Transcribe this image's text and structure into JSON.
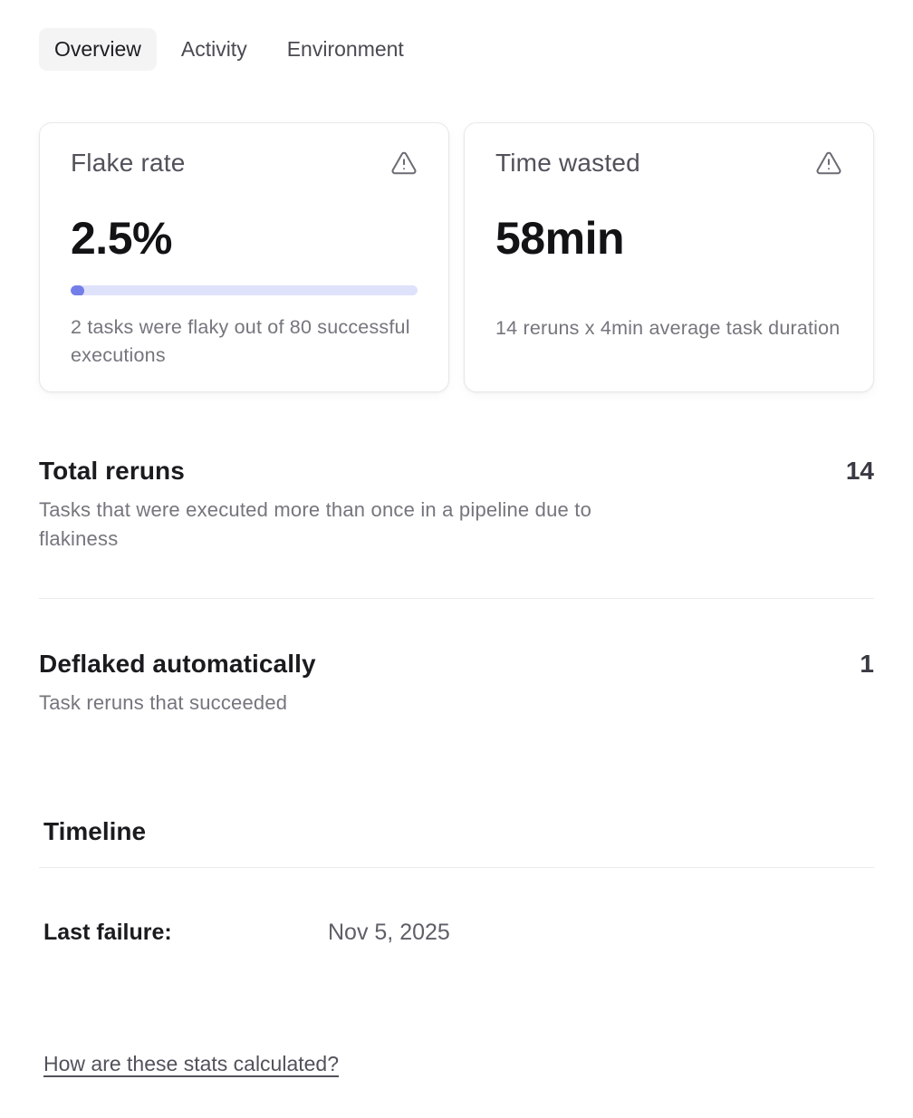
{
  "tabs": [
    {
      "label": "Overview",
      "active": true
    },
    {
      "label": "Activity",
      "active": false
    },
    {
      "label": "Environment",
      "active": false
    }
  ],
  "cards": [
    {
      "title": "Flake rate",
      "icon": "alert-triangle-icon",
      "value": "2.5%",
      "progress_percent": 2.5,
      "description": "2 tasks were flaky out of 80 successful executions"
    },
    {
      "title": "Time wasted",
      "icon": "alert-triangle-icon",
      "value": "58min",
      "description": "14 reruns x 4min average task duration"
    }
  ],
  "stats": [
    {
      "label": "Total reruns",
      "value": "14",
      "description": "Tasks that were executed more than once in a pipeline due to flakiness"
    },
    {
      "label": "Deflaked automatically",
      "value": "1",
      "description": "Task reruns that succeeded"
    }
  ],
  "timeline": {
    "heading": "Timeline",
    "rows": [
      {
        "label": "Last failure:",
        "value": "Nov 5, 2025"
      }
    ]
  },
  "footer": {
    "link_label": "How are these stats calculated?"
  },
  "colors": {
    "progress_track": "#dfe2fb",
    "progress_fill": "#747ee9",
    "active_tab_bg": "#f4f4f5",
    "heading_text": "#1b1b1f",
    "muted_text": "#75757d",
    "icon_gray": "#6b6b74"
  }
}
